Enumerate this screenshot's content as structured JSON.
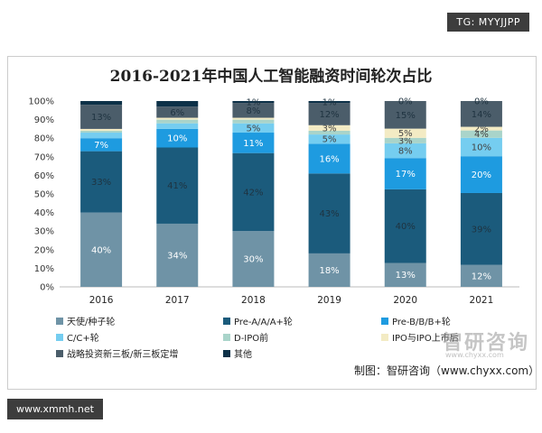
{
  "watermarks": {
    "top": "TG: MYYJJPP",
    "middle": "智研咨询",
    "middle_sub": "www.chyxx.com",
    "bottom": "www.xmmh.net"
  },
  "source": "制图：智研咨询（www.chyxx.com）",
  "chart_data": {
    "type": "bar",
    "stacked": true,
    "percent": true,
    "title": "2016-2021年中国人工智能融资时间轮次占比",
    "xlabel": "",
    "ylabel": "",
    "ylim": [
      0,
      100
    ],
    "y_ticks": [
      "0%",
      "10%",
      "20%",
      "30%",
      "40%",
      "50%",
      "60%",
      "70%",
      "80%",
      "90%",
      "100%"
    ],
    "categories": [
      "2016",
      "2017",
      "2018",
      "2019",
      "2020",
      "2021"
    ],
    "legend_position": "bottom",
    "series": [
      {
        "name": "天使/种子轮",
        "color": "#6f93a6",
        "values": [
          40,
          34,
          30,
          18,
          13,
          12
        ],
        "labels": [
          "40%",
          "34%",
          "30%",
          "18%",
          "13%",
          "12%"
        ]
      },
      {
        "name": "Pre-A/A/A+轮",
        "color": "#1b5b7c",
        "values": [
          33,
          41,
          42,
          43,
          40,
          39
        ],
        "labels": [
          "33%",
          "41%",
          "42%",
          "43%",
          "40%",
          "39%"
        ]
      },
      {
        "name": "Pre-B/B/B+轮",
        "color": "#1e9be0",
        "values": [
          7,
          10,
          11,
          16,
          17,
          20
        ],
        "labels": [
          "7%",
          "10%",
          "11%",
          "16%",
          "17%",
          "20%"
        ]
      },
      {
        "name": "C/C+轮",
        "color": "#75cdf0",
        "values": [
          3,
          3,
          5,
          5,
          8,
          10
        ],
        "labels": [
          "",
          "",
          "5%",
          "5%",
          "8%",
          "10%"
        ]
      },
      {
        "name": "D-IPO前",
        "color": "#a9d4ca",
        "values": [
          1,
          2,
          2,
          2,
          3,
          4
        ],
        "labels": [
          "",
          "",
          "",
          "",
          "3%",
          "4%"
        ]
      },
      {
        "name": "IPO与IPO上市后",
        "color": "#f3ebc4",
        "values": [
          1,
          1,
          1,
          3,
          5,
          2
        ],
        "labels": [
          "",
          "",
          "",
          "3%",
          "5%",
          "2%"
        ]
      },
      {
        "name": "战略投资新三板/新三板定增",
        "color": "#4b5d6a",
        "values": [
          13,
          6,
          8,
          12,
          15,
          14
        ],
        "labels": [
          "13%",
          "6%",
          "8%",
          "12%",
          "15%",
          "14%"
        ]
      },
      {
        "name": "其他",
        "color": "#0d3148",
        "values": [
          2,
          3,
          1,
          1,
          0,
          0
        ],
        "labels": [
          "",
          "",
          "1%",
          "1%",
          "0%",
          "0%"
        ]
      }
    ]
  }
}
